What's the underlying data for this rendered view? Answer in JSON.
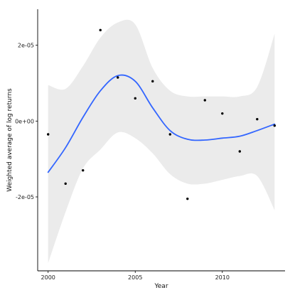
{
  "chart_data": {
    "type": "scatter",
    "title": "",
    "xlabel": "Year",
    "ylabel": "Weighted average of log returns",
    "xlim": [
      1999.4,
      2013.6
    ],
    "ylim": [
      -3.95e-05,
      2.95e-05
    ],
    "x_ticks": [
      {
        "value": 2000,
        "label": "2000"
      },
      {
        "value": 2005,
        "label": "2005"
      },
      {
        "value": 2010,
        "label": "2010"
      }
    ],
    "y_ticks": [
      {
        "value": 2e-05,
        "label": "2e-05"
      },
      {
        "value": 0.0,
        "label": "0e+00"
      },
      {
        "value": -2e-05,
        "label": "-2e-05"
      }
    ],
    "grid": false,
    "legend": "none",
    "colors": {
      "points": "#000000",
      "smooth_line": "#3366ff",
      "ribbon": "#ebebeb",
      "axis": "#000000"
    },
    "points": [
      {
        "x": 2000,
        "y": -3.5e-06
      },
      {
        "x": 2001,
        "y": -1.65e-05
      },
      {
        "x": 2002,
        "y": -1.3e-05
      },
      {
        "x": 2003,
        "y": 2.4e-05
      },
      {
        "x": 2004,
        "y": 1.15e-05
      },
      {
        "x": 2005,
        "y": 6e-06
      },
      {
        "x": 2006,
        "y": 1.05e-05
      },
      {
        "x": 2007,
        "y": -3.5e-06
      },
      {
        "x": 2008,
        "y": -2.05e-05
      },
      {
        "x": 2009,
        "y": 5.5e-06
      },
      {
        "x": 2010,
        "y": 2e-06
      },
      {
        "x": 2011,
        "y": -8e-06
      },
      {
        "x": 2012,
        "y": 5e-07
      },
      {
        "x": 2013,
        "y": -1.2e-06
      }
    ],
    "smooth_line": [
      {
        "x": 2000,
        "y": -1.35e-05
      },
      {
        "x": 2001,
        "y": -7e-06
      },
      {
        "x": 2002,
        "y": 1e-06
      },
      {
        "x": 2003,
        "y": 8e-06
      },
      {
        "x": 2004,
        "y": 1.2e-05
      },
      {
        "x": 2005,
        "y": 1.05e-05
      },
      {
        "x": 2006,
        "y": 3.5e-06
      },
      {
        "x": 2007,
        "y": -2.5e-06
      },
      {
        "x": 2008,
        "y": -4.8e-06
      },
      {
        "x": 2009,
        "y": -5e-06
      },
      {
        "x": 2010,
        "y": -4.5e-06
      },
      {
        "x": 2011,
        "y": -4e-06
      },
      {
        "x": 2012,
        "y": -2.5e-06
      },
      {
        "x": 2013,
        "y": -8e-07
      }
    ],
    "ribbon": {
      "upper": [
        {
          "x": 2000,
          "y": 9.5e-06
        },
        {
          "x": 2001,
          "y": 8.5e-06
        },
        {
          "x": 2002,
          "y": 1.45e-05
        },
        {
          "x": 2003,
          "y": 2.2e-05
        },
        {
          "x": 2004,
          "y": 2.6e-05
        },
        {
          "x": 2005,
          "y": 2.55e-05
        },
        {
          "x": 2006,
          "y": 1.4e-05
        },
        {
          "x": 2007,
          "y": 8e-06
        },
        {
          "x": 2008,
          "y": 6.5e-06
        },
        {
          "x": 2009,
          "y": 6.5e-06
        },
        {
          "x": 2010,
          "y": 6.5e-06
        },
        {
          "x": 2011,
          "y": 6.5e-06
        },
        {
          "x": 2012,
          "y": 9e-06
        },
        {
          "x": 2013,
          "y": 2.3e-05
        }
      ],
      "lower": [
        {
          "x": 2000,
          "y": -3.75e-05
        },
        {
          "x": 2001,
          "y": -2.4e-05
        },
        {
          "x": 2002,
          "y": -1.25e-05
        },
        {
          "x": 2003,
          "y": -7.5e-06
        },
        {
          "x": 2004,
          "y": -3e-06
        },
        {
          "x": 2005,
          "y": -4.5e-06
        },
        {
          "x": 2006,
          "y": -8.5e-06
        },
        {
          "x": 2007,
          "y": -1.4e-05
        },
        {
          "x": 2008,
          "y": -1.65e-05
        },
        {
          "x": 2009,
          "y": -1.65e-05
        },
        {
          "x": 2010,
          "y": -1.55e-05
        },
        {
          "x": 2011,
          "y": -1.45e-05
        },
        {
          "x": 2012,
          "y": -1.45e-05
        },
        {
          "x": 2013,
          "y": -2.35e-05
        }
      ]
    }
  }
}
